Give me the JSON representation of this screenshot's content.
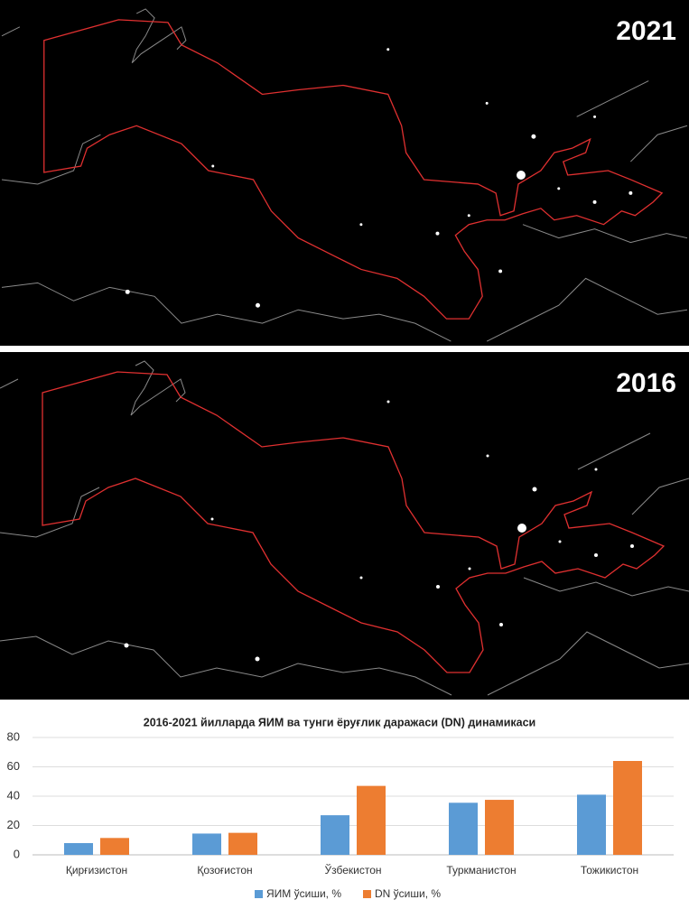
{
  "maps": [
    {
      "label": "2021"
    },
    {
      "label": "2016"
    }
  ],
  "chart_data": {
    "type": "bar",
    "title": "2016-2021 йилларда ЯИМ ва тунги ёруғлик даражаси (DN) динамикаси",
    "categories": [
      "Қирғизистон",
      "Қозоғистон",
      "Ўзбекистон",
      "Туркманистон",
      "Тожикистон"
    ],
    "series": [
      {
        "name": "ЯИМ ўсиши, %",
        "color": "#5b9bd5",
        "values": [
          8,
          14.5,
          27,
          35.5,
          41
        ]
      },
      {
        "name": "DN ўсиши, %",
        "color": "#ed7d31",
        "values": [
          11.5,
          15,
          47,
          37.5,
          64
        ]
      }
    ],
    "ylim": [
      0,
      80
    ],
    "yticks": [
      0,
      20,
      40,
      60,
      80
    ],
    "grid": true,
    "legend": "bottom"
  }
}
